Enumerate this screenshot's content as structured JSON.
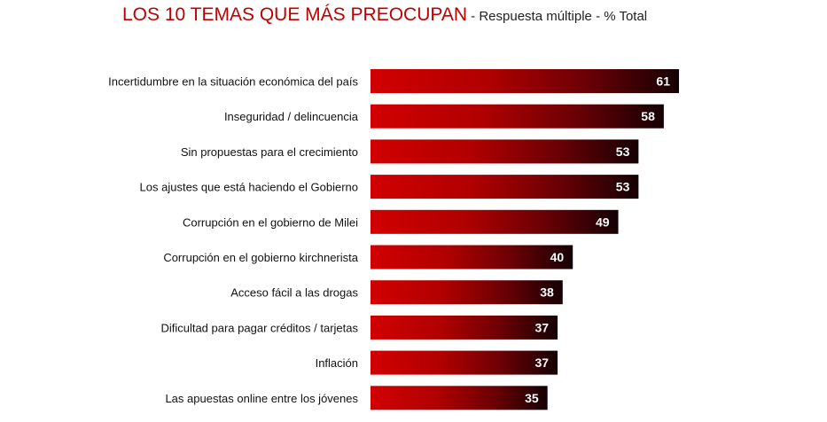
{
  "chart_data": {
    "type": "bar",
    "orientation": "horizontal",
    "title": "LOS 10 TEMAS QUE MÁS PREOCUPAN",
    "subtitle": " - Respuesta múltiple - % Total",
    "categories": [
      "Incertidumbre en la situación económica del país",
      "Inseguridad / delincuencia",
      "Sin propuestas para el crecimiento",
      "Los ajustes que está haciendo el Gobierno",
      "Corrupción en el gobierno de Milei",
      "Corrupción en el gobierno kirchnerista",
      "Acceso fácil a las drogas",
      "Dificultad para pagar créditos / tarjetas",
      "Inflación",
      "Las apuestas online entre los jóvenes"
    ],
    "values": [
      61,
      58,
      53,
      53,
      49,
      40,
      38,
      37,
      37,
      35
    ],
    "xlim": [
      0,
      61
    ],
    "xlabel": "",
    "ylabel": "",
    "grid": false,
    "legend": "none"
  },
  "colors": {
    "title": "#c00000",
    "bar_start": "#cc0000",
    "bar_end": "#1a0000"
  }
}
